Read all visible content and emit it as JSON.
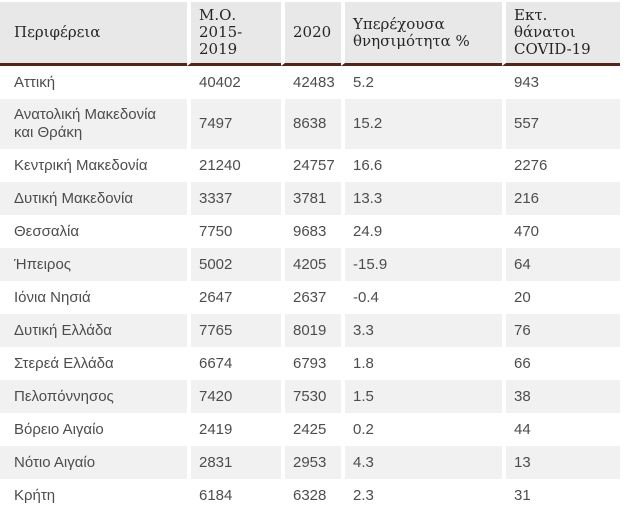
{
  "colors": {
    "header_bg": "#e8e8e8",
    "stripe_bg": "#f1f1f1",
    "header_underline": "#54261b",
    "header_text": "#262626",
    "body_text": "#4d4d4d",
    "page_bg": "#ffffff"
  },
  "chart_data": {
    "type": "table",
    "columns": [
      "Περιφέρεια",
      "Μ.Ο. 2015-2019",
      "2020",
      "Υπερέχουσα θνησιμότητα %",
      "Εκτ. θάνατοι COVID-19"
    ],
    "rows": [
      [
        "Αττική",
        "40402",
        "42483",
        "5.2",
        "943"
      ],
      [
        "Ανατολική Μακεδονία και Θράκη",
        "7497",
        "8638",
        "15.2",
        "557"
      ],
      [
        "Κεντρική Μακεδονία",
        "21240",
        "24757",
        "16.6",
        "2276"
      ],
      [
        "Δυτική Μακεδονία",
        "3337",
        "3781",
        "13.3",
        "216"
      ],
      [
        "Θεσσαλία",
        "7750",
        "9683",
        "24.9",
        "470"
      ],
      [
        "Ήπειρος",
        "5002",
        "4205",
        "-15.9",
        "64"
      ],
      [
        "Ιόνια Νησιά",
        "2647",
        "2637",
        "-0.4",
        "20"
      ],
      [
        "Δυτική Ελλάδα",
        "7765",
        "8019",
        "3.3",
        "76"
      ],
      [
        "Στερεά Ελλάδα",
        "6674",
        "6793",
        "1.8",
        "66"
      ],
      [
        "Πελοπόννησος",
        "7420",
        "7530",
        "1.5",
        "38"
      ],
      [
        "Βόρειο Αιγαίο",
        "2419",
        "2425",
        "0.2",
        "44"
      ],
      [
        "Νότιο Αιγαίο",
        "2831",
        "2953",
        "4.3",
        "13"
      ],
      [
        "Κρήτη",
        "6184",
        "6328",
        "2.3",
        "31"
      ]
    ]
  }
}
